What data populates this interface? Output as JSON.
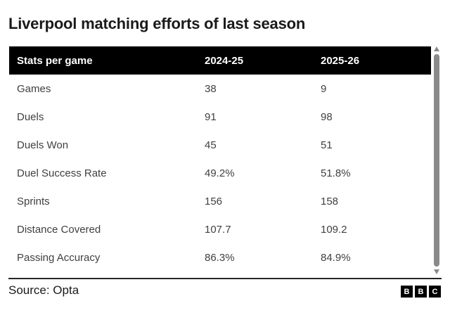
{
  "title": "Liverpool matching efforts of last season",
  "table": {
    "columns": [
      "Stats per game",
      "2024-25",
      "2025-26"
    ],
    "rows": [
      [
        "Games",
        "38",
        "9"
      ],
      [
        "Duels",
        "91",
        "98"
      ],
      [
        "Duels Won",
        "45",
        "51"
      ],
      [
        "Duel Success Rate",
        "49.2%",
        "51.8%"
      ],
      [
        "Sprints",
        "156",
        "158"
      ],
      [
        "Distance Covered",
        "107.7",
        "109.2"
      ],
      [
        "Passing Accuracy",
        "86.3%",
        "84.9%"
      ]
    ]
  },
  "chart_data": {
    "type": "table",
    "title": "Liverpool matching efforts of last season",
    "categories": [
      "Games",
      "Duels",
      "Duels Won",
      "Duel Success Rate",
      "Sprints",
      "Distance Covered",
      "Passing Accuracy"
    ],
    "series": [
      {
        "name": "2024-25",
        "values": [
          38,
          91,
          45,
          "49.2%",
          156,
          107.7,
          "86.3%"
        ]
      },
      {
        "name": "2025-26",
        "values": [
          9,
          98,
          51,
          "51.8%",
          158,
          109.2,
          "84.9%"
        ]
      }
    ]
  },
  "footer": {
    "source": "Source: Opta",
    "logo_letters": [
      "B",
      "B",
      "C"
    ]
  },
  "colors": {
    "header_bg": "#000000",
    "header_text": "#ffffff",
    "body_text": "#404040",
    "title_text": "#1a1a1a",
    "scrollbar": "#8a8a8a",
    "divider": "#262626"
  }
}
